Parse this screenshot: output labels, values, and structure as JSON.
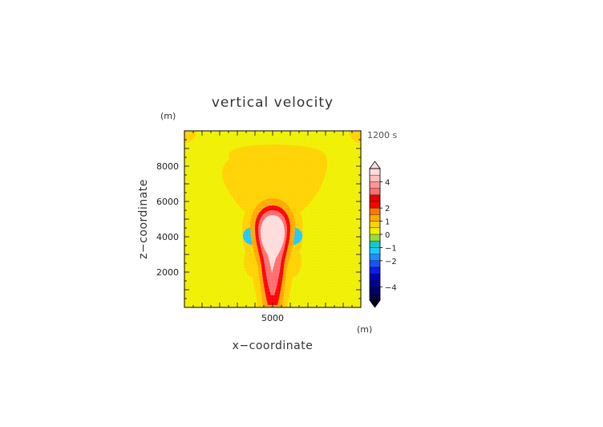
{
  "chart_data": {
    "type": "heatmap",
    "title": "vertical velocity",
    "time_label": "1200 s",
    "xlabel": "x−coordinate",
    "ylabel": "z−coordinate",
    "xunit": "(m)",
    "yunit": "(m)",
    "xlim": [
      0,
      10000
    ],
    "ylim": [
      0,
      10000
    ],
    "xticks": [
      {
        "value": 5000,
        "label": "5000"
      }
    ],
    "yticks": [
      {
        "value": 2000,
        "label": "2000"
      },
      {
        "value": 4000,
        "label": "4000"
      },
      {
        "value": 6000,
        "label": "6000"
      },
      {
        "value": 8000,
        "label": "8000"
      }
    ],
    "colorbar": {
      "levels": [
        -5,
        -4.5,
        -4,
        -3.5,
        -3,
        -2.5,
        -2,
        -1.5,
        -1,
        -0.5,
        0,
        0.5,
        1,
        1.5,
        2,
        2.5,
        3,
        3.5,
        4,
        4.5,
        5
      ],
      "colors": [
        "#000044",
        "#00006a",
        "#000092",
        "#0000c0",
        "#0a1ee6",
        "#1e50ff",
        "#1e8cff",
        "#1ec8ff",
        "#14c8c8",
        "#96dc3c",
        "#f0f000",
        "#ffd200",
        "#ffaa00",
        "#ff7800",
        "#ff0000",
        "#e60000",
        "#ff6e6e",
        "#ff9696",
        "#ffbebe",
        "#ffdcdc"
      ],
      "tick_labels": [
        {
          "value": 4,
          "label": "4"
        },
        {
          "value": 2,
          "label": "2"
        },
        {
          "value": 1,
          "label": "1"
        },
        {
          "value": 0,
          "label": "0"
        },
        {
          "value": -1,
          "label": "−1"
        },
        {
          "value": -2,
          "label": "−2"
        },
        {
          "value": -4,
          "label": "−4"
        }
      ]
    },
    "fields": [
      {
        "name": "background",
        "value": 0.1
      },
      {
        "name": "upper yellow outflow",
        "x": [
          2600,
          8200
        ],
        "z": [
          5600,
          9000
        ],
        "value": 0.5
      },
      {
        "name": "top-left corner",
        "x": 0,
        "z": 10000,
        "value": 0.5
      },
      {
        "name": "top-right corner",
        "x": 10000,
        "z": 10000,
        "value": 0.5
      },
      {
        "name": "yellow halo",
        "x": 5000,
        "z": 3200,
        "value": 0.6
      },
      {
        "name": "orange plume",
        "x": 5000,
        "z": 3000,
        "value": 1.4
      },
      {
        "name": "red plume",
        "x": 5000,
        "z": 2800,
        "value": 2.4
      },
      {
        "name": "light red core",
        "x": 5000,
        "z": 3400,
        "value": 3.3
      },
      {
        "name": "white core",
        "x": 5000,
        "z": 4100,
        "value": 4.6
      },
      {
        "name": "left downdraft",
        "x": 4000,
        "z": 4000,
        "value": -1.2
      },
      {
        "name": "right downdraft",
        "x": 6000,
        "z": 4000,
        "value": -1.2
      }
    ]
  }
}
